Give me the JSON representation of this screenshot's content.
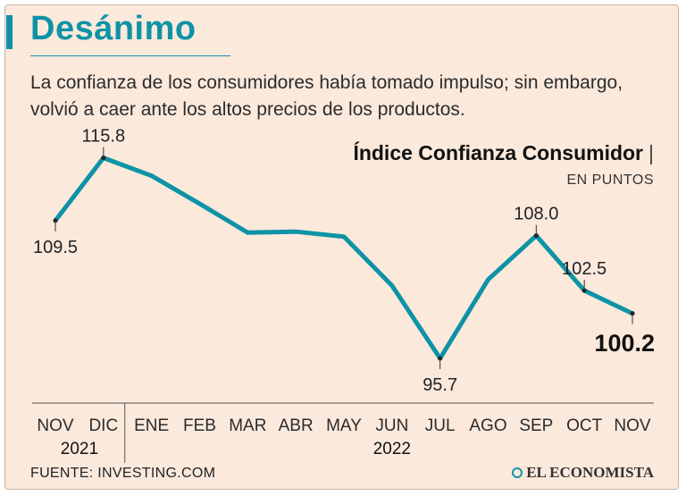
{
  "header": {
    "title": "Desánimo",
    "subtitle": "La confianza de los consumidores había tomado impulso; sin embargo, volvió a caer ante los altos precios de los productos."
  },
  "legend": {
    "series_name": "Índice Confianza Consumidor",
    "separator": "|",
    "units": "EN PUNTOS"
  },
  "footer": {
    "source": "FUENTE: INVESTING.COM",
    "brand": "EL ECONOMISTA"
  },
  "colors": {
    "line": "#0e93a6",
    "background": "#fbe9dc",
    "title": "#0e93a6"
  },
  "chart_data": {
    "type": "line",
    "title": "Índice Confianza Consumidor",
    "ylabel": "EN PUNTOS",
    "categories": [
      "NOV",
      "DIC",
      "ENE",
      "FEB",
      "MAR",
      "ABR",
      "MAY",
      "JUN",
      "JUL",
      "AGO",
      "SEP",
      "OCT",
      "NOV"
    ],
    "year_groups": [
      {
        "label": "2021",
        "from": 0,
        "to": 1
      },
      {
        "label": "2022",
        "from": 2,
        "to": 12
      }
    ],
    "series": [
      {
        "name": "Índice Confianza Consumidor",
        "values": [
          109.5,
          115.8,
          114.0,
          111.2,
          108.3,
          108.4,
          107.9,
          103.0,
          95.7,
          103.6,
          108.0,
          102.5,
          100.2
        ]
      }
    ],
    "labeled_points": [
      {
        "index": 0,
        "text": "109.5",
        "position": "below"
      },
      {
        "index": 1,
        "text": "115.8",
        "position": "above"
      },
      {
        "index": 8,
        "text": "95.7",
        "position": "below"
      },
      {
        "index": 10,
        "text": "108.0",
        "position": "above"
      },
      {
        "index": 11,
        "text": "102.5",
        "position": "above"
      },
      {
        "index": 12,
        "text": "100.2",
        "position": "below",
        "emphasis": true
      }
    ],
    "ylim": [
      94,
      118
    ],
    "grid": false
  }
}
